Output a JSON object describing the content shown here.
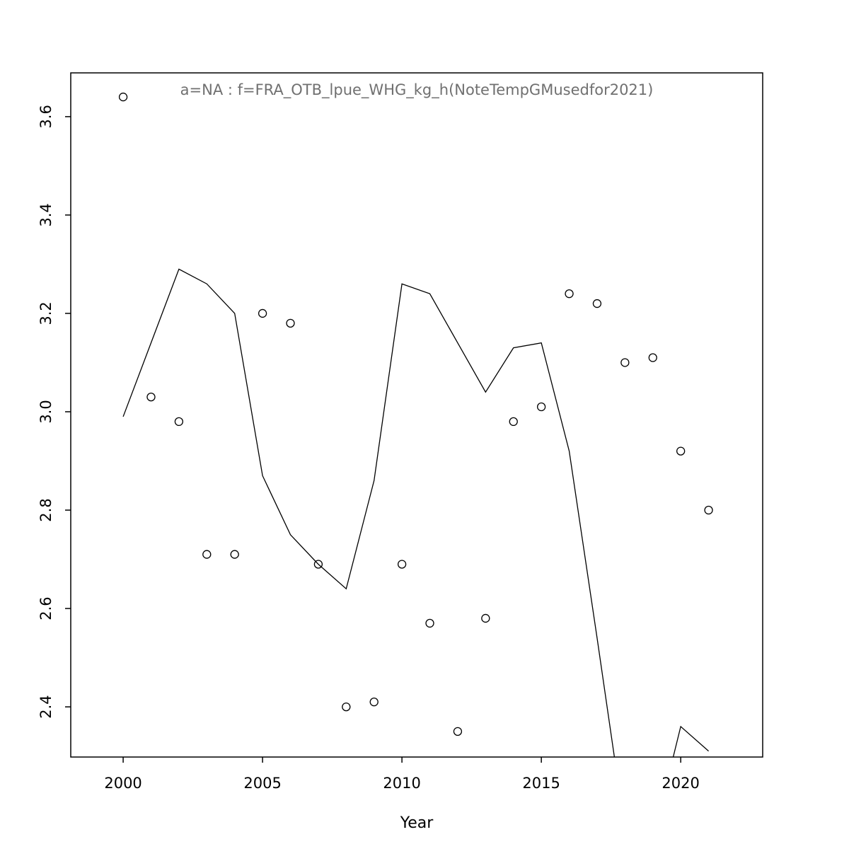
{
  "chart_data": {
    "type": "line",
    "subtype": "scatter-with-fitted-line",
    "title": "a=NA : f=FRA_OTB_lpue_WHG_kg_h(NoteTempGMusedfor2021)",
    "xlabel": "Year",
    "ylabel": "",
    "x": [
      2000,
      2001,
      2002,
      2003,
      2004,
      2005,
      2006,
      2007,
      2008,
      2009,
      2010,
      2011,
      2012,
      2013,
      2014,
      2015,
      2016,
      2017,
      2018,
      2019,
      2020,
      2021
    ],
    "series": [
      {
        "name": "observed-points",
        "style": "points",
        "marker": "open-circle",
        "color": "#000000",
        "values": [
          3.64,
          3.03,
          2.98,
          2.71,
          2.71,
          3.2,
          3.18,
          2.69,
          2.4,
          2.41,
          2.69,
          2.57,
          2.35,
          2.58,
          2.98,
          3.01,
          3.24,
          3.22,
          3.1,
          3.11,
          2.92,
          2.8
        ]
      },
      {
        "name": "fitted-line",
        "style": "line",
        "color": "#000000",
        "values": [
          2.99,
          3.14,
          3.29,
          3.26,
          3.2,
          2.87,
          2.75,
          2.69,
          2.64,
          2.86,
          3.26,
          3.24,
          3.14,
          3.04,
          3.13,
          3.14,
          2.92,
          2.54,
          2.15,
          2.13,
          2.36,
          2.31
        ]
      }
    ],
    "x_ticks": [
      2000,
      2005,
      2010,
      2015,
      2020
    ],
    "y_ticks": [
      "2.4",
      "2.6",
      "2.8",
      "3.0",
      "3.2",
      "3.4",
      "3.6"
    ],
    "xlim": [
      1998.12,
      2022.94
    ],
    "ylim": [
      2.298,
      3.689
    ],
    "grid": false,
    "legend": "none",
    "colors": {
      "title": "#707070",
      "axis": "#000000",
      "marks": "#000000",
      "background": "#ffffff"
    }
  }
}
